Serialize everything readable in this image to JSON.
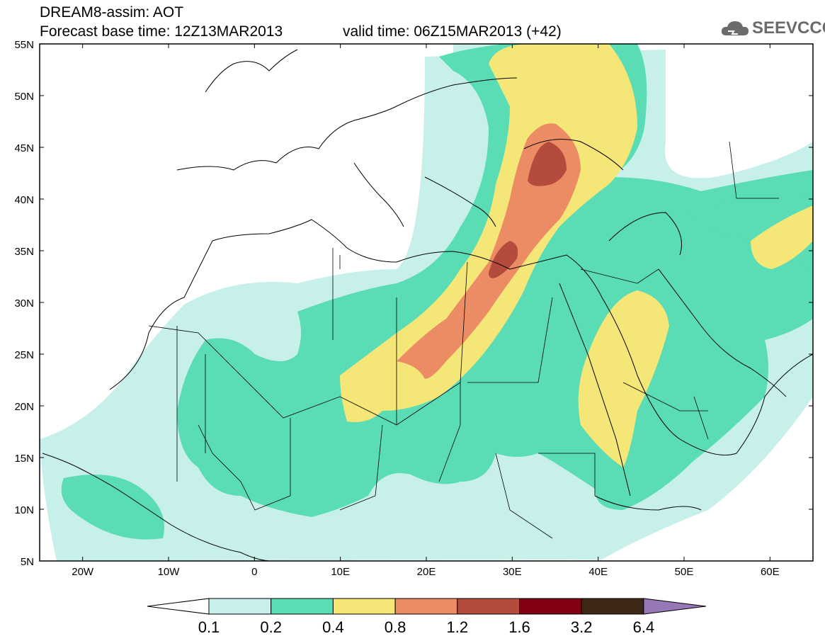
{
  "title": {
    "line1": "DREAM8-assim: AOT",
    "line2": "Forecast base time: 12Z13MAR2013",
    "valid": "valid time: 06Z15MAR2013 (+42)"
  },
  "logo": {
    "text": "SEEVCCC",
    "icon": "cloud-icon"
  },
  "map": {
    "lat_labels": [
      "55N",
      "50N",
      "45N",
      "40N",
      "35N",
      "30N",
      "25N",
      "20N",
      "15N",
      "10N",
      "5N"
    ],
    "lon_labels": [
      "20W",
      "10W",
      "0",
      "10E",
      "20E",
      "30E",
      "40E",
      "50E",
      "60E"
    ],
    "lat_range": [
      5,
      55
    ],
    "lon_range": [
      -25,
      65
    ]
  },
  "colorbar": {
    "labels": [
      "0.1",
      "0.2",
      "0.4",
      "0.8",
      "1.2",
      "1.6",
      "3.2",
      "6.4"
    ],
    "colors": [
      "#ffffff",
      "#c8f0eb",
      "#5adcb4",
      "#f5e678",
      "#eb8c64",
      "#b44b3c",
      "#820014",
      "#3c2814",
      "#9678b4"
    ]
  },
  "levels_colors": {
    "c01": "#c8f0eb",
    "c02": "#5adcb4",
    "c04": "#f5e678",
    "c08": "#eb8c64",
    "c12": "#b44b3c"
  }
}
